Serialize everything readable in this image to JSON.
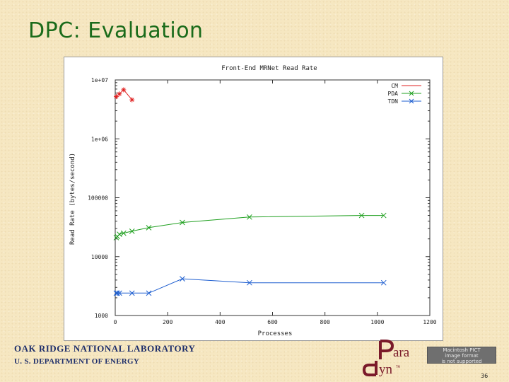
{
  "slide": {
    "title": "DPC: Evaluation",
    "org_line1": "OAK RIDGE NATIONAL LABORATORY",
    "org_line2": "U. S. DEPARTMENT OF ENERGY",
    "logo_top": "ara",
    "logo_bottom": "yn",
    "placeholder_line1": "Macintosh PICT",
    "placeholder_line2": "image format",
    "placeholder_line3": "is not supported",
    "page_number": "36"
  },
  "chart_data": {
    "type": "line",
    "title": "Front-End MRNet Read Rate",
    "xlabel": "Processes",
    "ylabel": "Read Rate (bytes/second)",
    "xlim": [
      0,
      1200
    ],
    "ylim": [
      1000,
      10000000
    ],
    "yscale": "log",
    "x_ticks": [
      0,
      200,
      400,
      600,
      800,
      1000,
      1200
    ],
    "x_tick_labels": [
      "0",
      "200",
      "400",
      "600",
      "800",
      "1000",
      "1200"
    ],
    "y_ticks": [
      1000,
      10000,
      100000,
      1000000,
      10000000
    ],
    "y_tick_labels": [
      "1000",
      "10000",
      "100000",
      "1e+06",
      "1e+07"
    ],
    "grid": false,
    "legend_position": "top-right",
    "series": [
      {
        "name": "CM",
        "color": "#e02020",
        "marker": "plus",
        "x": [
          4,
          16,
          32,
          64
        ],
        "y": [
          5200000,
          5800000,
          6800000,
          4600000
        ]
      },
      {
        "name": "PDA",
        "color": "#20a020",
        "marker": "cross",
        "x": [
          4,
          8,
          16,
          32,
          64,
          128,
          256,
          512,
          940,
          1024
        ],
        "y": [
          21000,
          22000,
          24000,
          25000,
          27000,
          31000,
          38000,
          47000,
          50000,
          50000
        ]
      },
      {
        "name": "TDN",
        "color": "#1f5fd0",
        "marker": "cross",
        "x": [
          4,
          8,
          16,
          64,
          128,
          256,
          512,
          1024
        ],
        "y": [
          2400,
          2400,
          2400,
          2400,
          2400,
          4200,
          3600,
          3600
        ]
      }
    ]
  }
}
